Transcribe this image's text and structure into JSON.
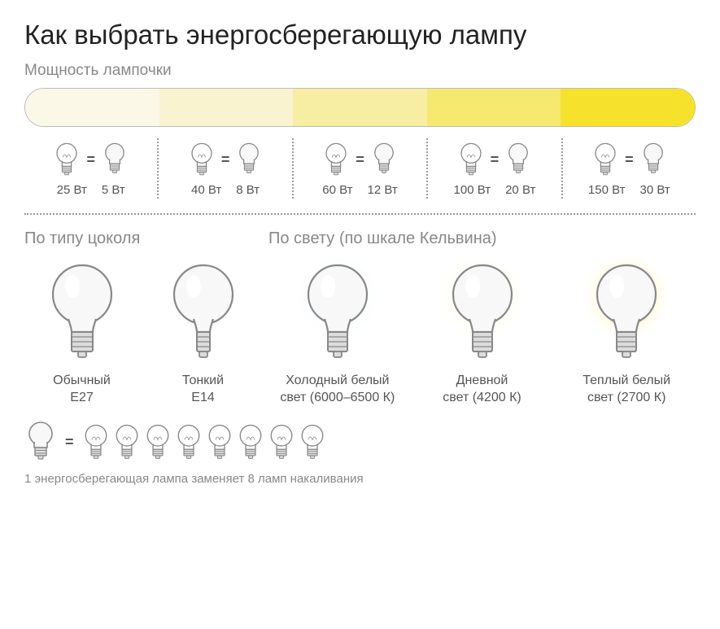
{
  "title": "Как выбрать энергосберегающую лампу",
  "power_section": {
    "subtitle": "Мощность лампочки",
    "segments": [
      {
        "color": "#fcf8e8"
      },
      {
        "color": "#f9f3d0"
      },
      {
        "color": "#f7eea4"
      },
      {
        "color": "#f6e96f"
      },
      {
        "color": "#f6e22a"
      }
    ],
    "pairs": [
      {
        "incandescent": "25 Вт",
        "eco": "5 Вт"
      },
      {
        "incandescent": "40 Вт",
        "eco": "8 Вт"
      },
      {
        "incandescent": "60 Вт",
        "eco": "12 Вт"
      },
      {
        "incandescent": "100 Вт",
        "eco": "20 Вт"
      },
      {
        "incandescent": "150 Вт",
        "eco": "30 Вт"
      }
    ]
  },
  "socket_section": {
    "label": "По типу цоколя",
    "items": [
      {
        "name": "Обычный",
        "code": "E27",
        "socket_width": 26
      },
      {
        "name": "Тонкий",
        "code": "E14",
        "socket_width": 16
      }
    ]
  },
  "kelvin_section": {
    "label": "По свету (по шкале Кельвина)",
    "items": [
      {
        "name": "Холодный белый",
        "sub": "свет (6000–6500 К)",
        "glow_inner": "#e3f3ff",
        "glow_outer": "#ffffff"
      },
      {
        "name": "Дневной",
        "sub": "свет (4200 К)",
        "glow_inner": "#fff7c0",
        "glow_outer": "#ffffff"
      },
      {
        "name": "Теплый белый",
        "sub": "свет (2700 К)",
        "glow_inner": "#ffe83a",
        "glow_outer": "#ffffff"
      }
    ]
  },
  "equivalence": {
    "count": 8,
    "eq": "=",
    "text": "1 энергосберегающая лампа заменяет 8 ламп накаливания"
  },
  "svg": {
    "bulb_stroke": "#888888",
    "bulb_fill": "#f8f8f8",
    "socket_fill": "#dcdcdc"
  }
}
